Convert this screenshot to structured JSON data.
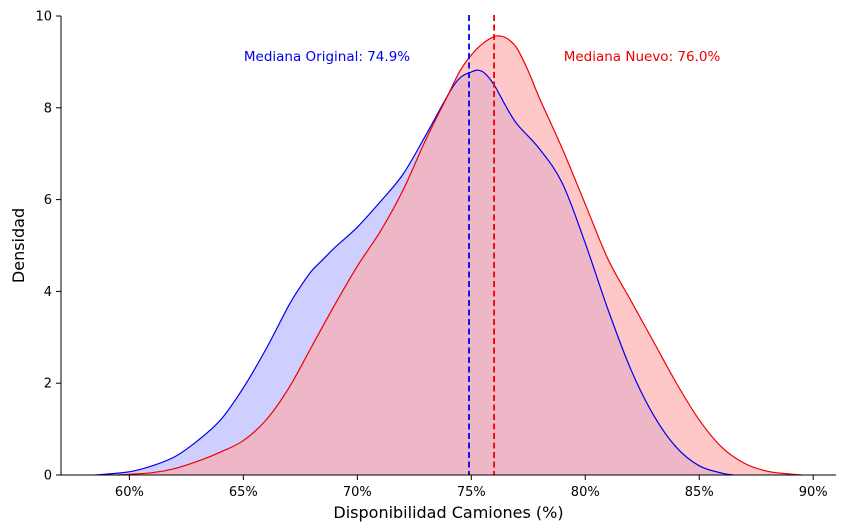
{
  "chart_data": {
    "type": "area",
    "xlabel": "Disponibilidad Camiones (%)",
    "ylabel": "Densidad",
    "xlim": [
      57.0,
      91.0
    ],
    "ylim": [
      0,
      10
    ],
    "x_ticks": [
      60,
      65,
      70,
      75,
      80,
      85,
      90
    ],
    "x_tick_labels": [
      "60%",
      "65%",
      "70%",
      "75%",
      "80%",
      "85%",
      "90%"
    ],
    "y_ticks": [
      0,
      2,
      4,
      6,
      8,
      10
    ],
    "y_tick_labels": [
      "0",
      "2",
      "4",
      "6",
      "8",
      "10"
    ],
    "grid": false,
    "series": [
      {
        "color": "#0000ee",
        "fill": "#b3b3ff",
        "x": [
          58.5,
          60,
          61,
          62,
          63,
          64,
          65,
          66,
          67,
          67.5,
          68,
          68.5,
          69,
          70,
          71,
          72,
          73,
          74,
          74.5,
          75,
          75.3,
          75.6,
          76,
          76.5,
          77,
          78,
          79,
          80,
          81,
          82,
          83,
          84,
          85,
          86,
          86.5
        ],
        "values": [
          0.0,
          0.07,
          0.2,
          0.4,
          0.75,
          1.2,
          1.9,
          2.75,
          3.7,
          4.1,
          4.45,
          4.7,
          4.95,
          5.4,
          5.95,
          6.55,
          7.4,
          8.3,
          8.65,
          8.78,
          8.82,
          8.75,
          8.5,
          8.05,
          7.65,
          7.1,
          6.35,
          5.05,
          3.6,
          2.3,
          1.3,
          0.6,
          0.2,
          0.04,
          0.0
        ]
      },
      {
        "color": "#ee0000",
        "fill": "#ffaaaa",
        "x": [
          59.5,
          61,
          62,
          63,
          64,
          65,
          66,
          67,
          68,
          69,
          70,
          71,
          72,
          73,
          74,
          74.5,
          75,
          75.5,
          76,
          76.3,
          76.6,
          77,
          77.5,
          78,
          79,
          80,
          81,
          82,
          83,
          84,
          85,
          86,
          87,
          88,
          89,
          89.5
        ],
        "values": [
          0.0,
          0.05,
          0.14,
          0.3,
          0.5,
          0.75,
          1.2,
          1.9,
          2.8,
          3.7,
          4.55,
          5.3,
          6.2,
          7.3,
          8.3,
          8.8,
          9.15,
          9.4,
          9.55,
          9.56,
          9.5,
          9.3,
          8.8,
          8.2,
          7.1,
          5.9,
          4.7,
          3.8,
          2.9,
          2.0,
          1.2,
          0.6,
          0.25,
          0.08,
          0.02,
          0.0
        ]
      }
    ],
    "reference_lines": [
      {
        "x": 74.9,
        "color": "#0000ee",
        "style": "dashed",
        "label": "Mediana Original: 74.9%"
      },
      {
        "x": 76.0,
        "color": "#ee0000",
        "style": "dashed",
        "label": "Mediana Nuevo: 76.0%"
      }
    ]
  }
}
